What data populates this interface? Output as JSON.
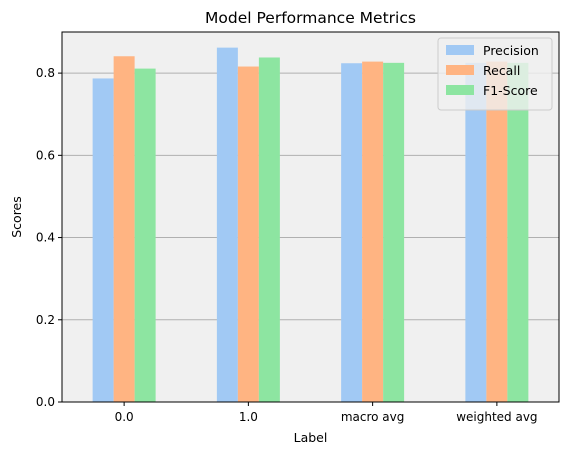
{
  "chart_data": {
    "type": "bar",
    "title": "Model Performance Metrics",
    "xlabel": "Label",
    "ylabel": "Scores",
    "categories": [
      "0.0",
      "1.0",
      "macro avg",
      "weighted avg"
    ],
    "series": [
      {
        "name": "Precision",
        "color": "#a1c9f4",
        "values": [
          0.787,
          0.862,
          0.824,
          0.825
        ]
      },
      {
        "name": "Recall",
        "color": "#ffb482",
        "values": [
          0.841,
          0.816,
          0.828,
          0.828
        ]
      },
      {
        "name": "F1-Score",
        "color": "#8de5a1",
        "values": [
          0.811,
          0.838,
          0.825,
          0.825
        ]
      }
    ],
    "ylim": [
      0,
      0.9
    ],
    "yticks": [
      "0.0",
      "0.2",
      "0.4",
      "0.6",
      "0.8"
    ],
    "grid": "y",
    "legend": "top-right",
    "plot_background": "#f0f0f0"
  }
}
